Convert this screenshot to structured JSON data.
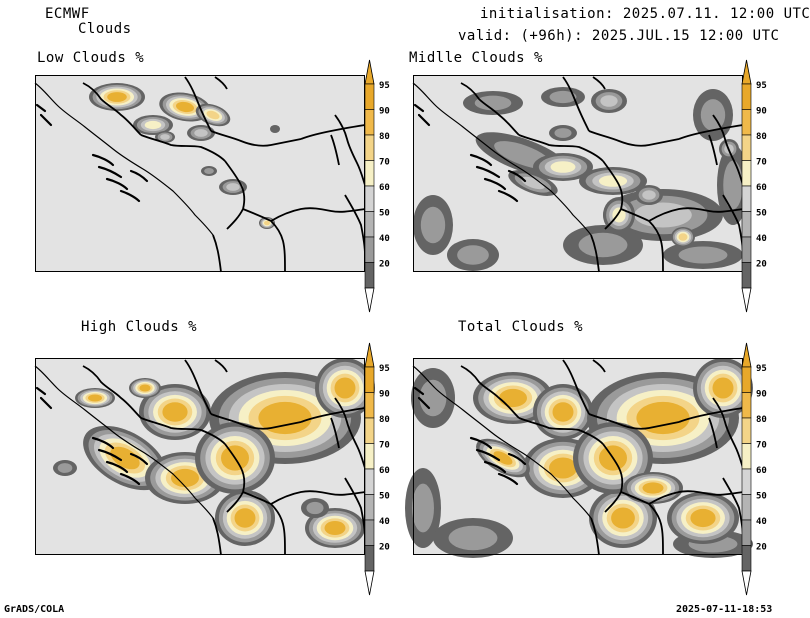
{
  "header": {
    "model": "ECMWF",
    "product": "Clouds",
    "initialisation": "initialisation: 2025.07.11. 12:00 UTC",
    "valid": "valid: (+96h): 2025.JUL.15 12:00 UTC"
  },
  "panels": [
    {
      "id": "low",
      "title": "Low Clouds %"
    },
    {
      "id": "middle",
      "title": "Midlle Clouds %"
    },
    {
      "id": "high",
      "title": "High Clouds %"
    },
    {
      "id": "total",
      "title": "Total Clouds %"
    }
  ],
  "colorbar": {
    "ticks": [
      "95",
      "90",
      "80",
      "70",
      "60",
      "50",
      "40",
      "20"
    ],
    "colors": [
      "#e8a82a",
      "#f0b94a",
      "#f3d488",
      "#f6f0c6",
      "#d4d4d4",
      "#b4b4b4",
      "#9a9a9a",
      "#646464"
    ]
  },
  "map_colors": {
    "background": "#e3e3e3",
    "cloud_dark": "#646464",
    "cloud_mid": "#9a9a9a",
    "cloud_light": "#c4c4c4",
    "cloud_pale": "#f6f0c6",
    "cloud_yellow": "#f3d488",
    "cloud_orange": "#e8b032"
  },
  "footer": {
    "left": "GrADS/COLA",
    "right": "2025-07-11-18:53"
  }
}
